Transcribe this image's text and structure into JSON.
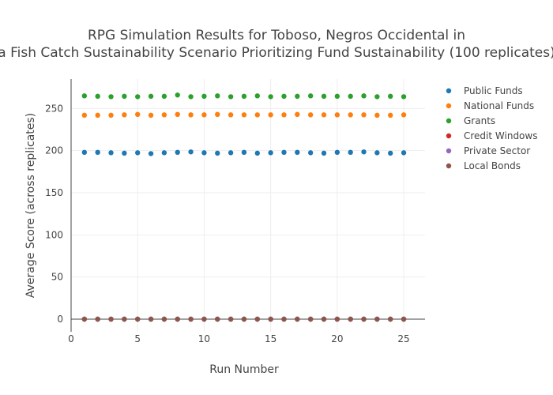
{
  "chart_data": {
    "type": "scatter",
    "title_lines": [
      "RPG Simulation Results for Toboso, Negros Occidental in",
      "a Fish Catch Sustainability Scenario Prioritizing Fund Sustainability (100 replicates)"
    ],
    "xlabel": "Run Number",
    "ylabel": "Average Score (across replicates)",
    "xlim": [
      0,
      26.6
    ],
    "ylim": [
      -15,
      285
    ],
    "xticks": [
      0,
      5,
      10,
      15,
      20,
      25
    ],
    "yticks": [
      0,
      50,
      100,
      150,
      200,
      250
    ],
    "grid": true,
    "legend_position": "right",
    "x": [
      1,
      2,
      3,
      4,
      5,
      6,
      7,
      8,
      9,
      10,
      11,
      12,
      13,
      14,
      15,
      16,
      17,
      18,
      19,
      20,
      21,
      22,
      23,
      24,
      25
    ],
    "series": [
      {
        "name": "Public Funds",
        "color": "#1f77b4",
        "values": [
          198,
          198,
          197.5,
          197,
          197.5,
          196.5,
          197.5,
          198,
          198.5,
          197.5,
          197,
          197.5,
          198,
          197,
          197.5,
          198,
          198,
          197.5,
          197,
          198,
          198,
          198.5,
          197.5,
          197,
          197.5
        ]
      },
      {
        "name": "National Funds",
        "color": "#ff7f0e",
        "values": [
          242,
          242,
          242,
          242.5,
          243,
          242,
          242.5,
          243,
          242.5,
          242.5,
          243,
          242.5,
          242.5,
          242.5,
          242.5,
          242.5,
          243,
          242.5,
          242.5,
          242.5,
          242.5,
          242.5,
          242,
          242,
          242.5
        ]
      },
      {
        "name": "Grants",
        "color": "#2ca02c",
        "values": [
          265,
          264.5,
          264,
          264.5,
          264,
          264.5,
          264.5,
          266,
          264,
          264.5,
          265,
          264,
          264.5,
          265,
          264,
          264.5,
          264.5,
          265,
          264.5,
          264.5,
          264.5,
          265,
          264,
          264.5,
          264
        ]
      },
      {
        "name": "Credit Windows",
        "color": "#d62728",
        "values": [
          0,
          0,
          0,
          0,
          0,
          0,
          0,
          0,
          0,
          0,
          0,
          0,
          0,
          0,
          0,
          0,
          0,
          0,
          0,
          0,
          0,
          0,
          0,
          0,
          0
        ]
      },
      {
        "name": "Private Sector",
        "color": "#9467bd",
        "values": [
          0,
          0,
          0,
          0,
          0,
          0,
          0,
          0,
          0,
          0,
          0,
          0,
          0,
          0,
          0,
          0,
          0,
          0,
          0,
          0,
          0,
          0,
          0,
          0,
          0
        ]
      },
      {
        "name": "Local Bonds",
        "color": "#8c564b",
        "values": [
          0,
          0,
          0,
          0,
          0,
          0,
          0,
          0,
          0,
          0,
          0,
          0,
          0,
          0,
          0,
          0,
          0,
          0,
          0,
          0,
          0,
          0,
          0,
          0,
          0
        ]
      }
    ]
  }
}
